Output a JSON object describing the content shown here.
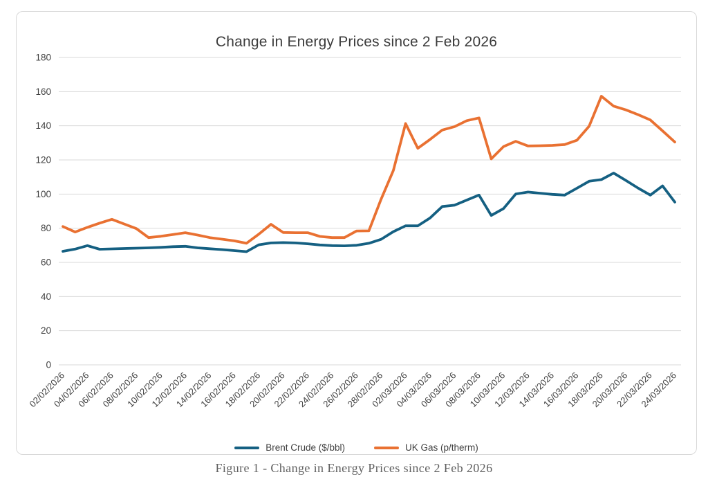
{
  "chart": {
    "title": "Change in Energy Prices since 2 Feb 2026",
    "border_color": "#d9d9d9",
    "gridline_color": "#d9d9d9",
    "tick_label_color": "#404040",
    "title_color": "#3b3b3b"
  },
  "legend": {
    "items": [
      {
        "label": "Brent Crude ($/bbl)",
        "color": "#156082"
      },
      {
        "label": "UK Gas (p/therm)",
        "color": "#e97132"
      }
    ]
  },
  "caption": "Figure 1 - Change in Energy Prices since 2 Feb 2026",
  "chart_data": {
    "type": "line",
    "title": "Change in Energy Prices since 2 Feb 2026",
    "xlabel": "",
    "ylabel": "",
    "ylim": [
      0,
      180
    ],
    "ytick_step": 20,
    "grid": true,
    "legend_position": "bottom",
    "x_label_every": 2,
    "x": [
      "02/02/2026",
      "03/02/2026",
      "04/02/2026",
      "05/02/2026",
      "06/02/2026",
      "07/02/2026",
      "08/02/2026",
      "09/02/2026",
      "10/02/2026",
      "11/02/2026",
      "12/02/2026",
      "13/02/2026",
      "14/02/2026",
      "15/02/2026",
      "16/02/2026",
      "17/02/2026",
      "18/02/2026",
      "19/02/2026",
      "20/02/2026",
      "21/02/2026",
      "22/02/2026",
      "23/02/2026",
      "24/02/2026",
      "25/02/2026",
      "26/02/2026",
      "27/02/2026",
      "28/02/2026",
      "01/03/2026",
      "02/03/2026",
      "03/03/2026",
      "04/03/2026",
      "05/03/2026",
      "06/03/2026",
      "07/03/2026",
      "08/03/2026",
      "09/03/2026",
      "10/03/2026",
      "11/03/2026",
      "12/03/2026",
      "13/03/2026",
      "14/03/2026",
      "15/03/2026",
      "16/03/2026",
      "17/03/2026",
      "18/03/2026",
      "19/03/2026",
      "20/03/2026",
      "21/03/2026",
      "22/03/2026",
      "23/03/2026",
      "24/03/2026"
    ],
    "series": [
      {
        "name": "Brent Crude ($/bbl)",
        "color": "#156082",
        "values": [
          66.5,
          67.8,
          69.8,
          67.7,
          67.9,
          68.1,
          68.3,
          68.5,
          68.8,
          69.2,
          69.4,
          68.5,
          68.0,
          67.5,
          66.9,
          66.3,
          70.3,
          71.4,
          71.6,
          71.4,
          70.9,
          70.2,
          69.8,
          69.7,
          70.0,
          71.2,
          73.5,
          78.0,
          81.4,
          81.4,
          86.0,
          92.7,
          93.5,
          96.5,
          99.4,
          87.5,
          91.5,
          100.0,
          101.2,
          100.5,
          99.8,
          99.4,
          103.4,
          107.5,
          108.5,
          112.3,
          108.0,
          103.5,
          99.4,
          104.8,
          95.3
        ]
      },
      {
        "name": "UK Gas (p/therm)",
        "color": "#e97132",
        "values": [
          81.0,
          77.8,
          80.5,
          83.0,
          85.2,
          82.5,
          79.8,
          74.5,
          75.3,
          76.3,
          77.4,
          76.0,
          74.5,
          73.6,
          72.6,
          71.2,
          76.5,
          82.3,
          77.5,
          77.4,
          77.4,
          75.2,
          74.5,
          74.5,
          78.4,
          78.5,
          97.0,
          113.8,
          141.3,
          126.8,
          132.0,
          137.5,
          139.5,
          143.0,
          144.6,
          120.6,
          127.8,
          130.9,
          128.2,
          128.3,
          128.5,
          129.0,
          131.5,
          139.8,
          157.3,
          151.5,
          149.3,
          146.5,
          143.4,
          137.0,
          130.5
        ]
      }
    ]
  }
}
